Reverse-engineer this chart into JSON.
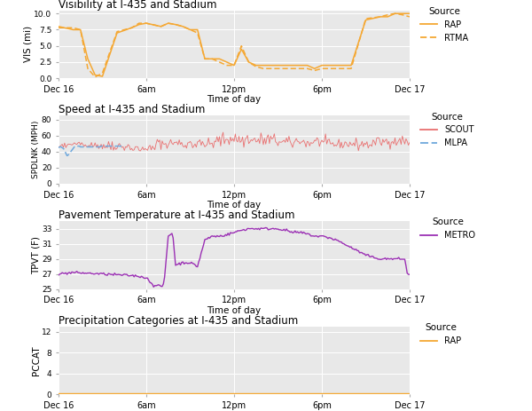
{
  "title1": "Visibility at I-435 and Stadium",
  "title2": "Speed at I-435 and Stadium",
  "title3": "Pavement Temperature at I-435 and Stadium",
  "title4": "Precipitation Categories at I-435 and Stadium",
  "ylabel1": "VIS (mi)",
  "ylabel2": "SPDLNK (MPH)",
  "ylabel3": "TPVT (F)",
  "ylabel4": "PCCAT",
  "xlabel": "Time of day",
  "xtick_labels": [
    "Dec 16",
    "6am",
    "12pm",
    "6pm",
    "Dec 17"
  ],
  "bg_color": "#e8e8e8",
  "grid_color": "#ffffff",
  "rap_color": "#f5a833",
  "rtma_color": "#f5a833",
  "scout_color": "#e87070",
  "mlpa_color": "#6fa8dc",
  "metro_color": "#9b30b4",
  "rap4_color": "#f5a833",
  "vis_ylim": [
    0,
    10.5
  ],
  "vis_yticks": [
    0.0,
    2.5,
    5.0,
    7.5,
    10.0
  ],
  "spd_ylim": [
    0,
    85
  ],
  "spd_yticks": [
    0,
    20,
    40,
    60,
    80
  ],
  "tpvt_ylim": [
    25,
    34
  ],
  "tpvt_yticks": [
    25,
    27,
    29,
    31,
    33
  ],
  "pccat_ylim": [
    0,
    13
  ],
  "pccat_yticks": [
    0,
    4,
    8,
    12
  ]
}
